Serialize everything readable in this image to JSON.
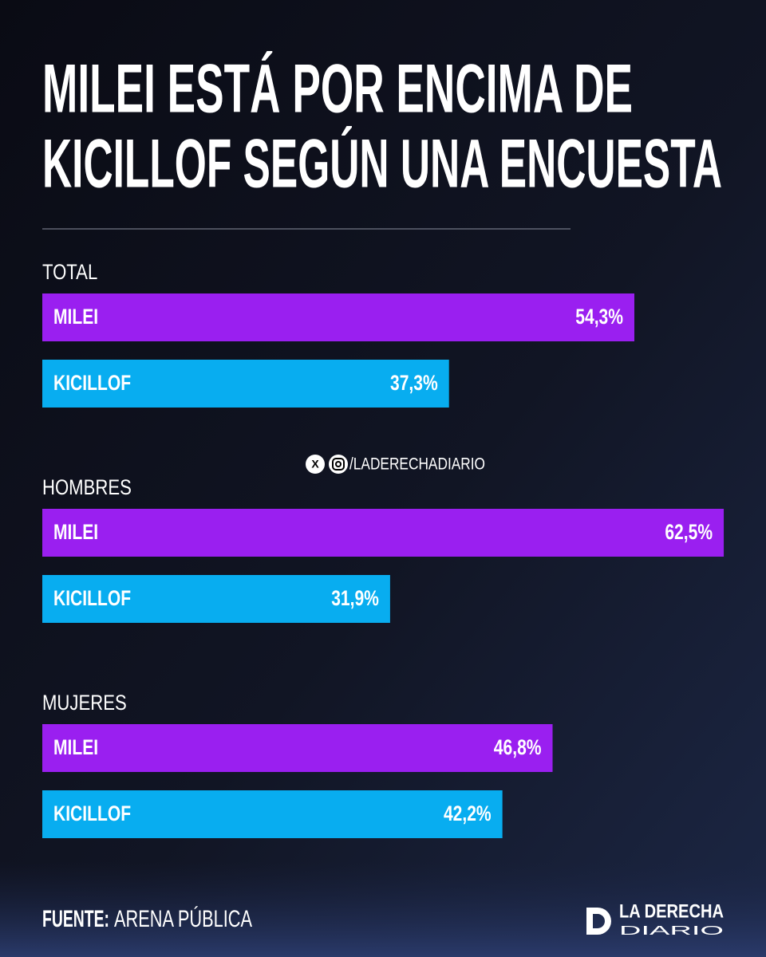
{
  "chart_data": {
    "type": "bar",
    "title": [
      "MILEI ESTÁ POR ENCIMA DE",
      "KICILLOF SEGÚN UNA ENCUESTA"
    ],
    "categories": [
      "TOTAL",
      "HOMBRES",
      "MUJERES"
    ],
    "series": [
      {
        "name": "MILEI",
        "color": "#9a1ff0",
        "values": [
          54.3,
          62.5,
          46.8
        ],
        "value_labels": [
          "54,3%",
          "62,5%",
          "46,8%"
        ]
      },
      {
        "name": "KICILLOF",
        "color": "#08adf0",
        "values": [
          37.3,
          31.9,
          42.2
        ],
        "value_labels": [
          "37,3%",
          "31,9%",
          "42,2%"
        ]
      }
    ],
    "handle": "/LADERECHADIARIO",
    "source_label": "FUENTE:",
    "source": "ARENA PÚBLICA",
    "brand": [
      "LA DERECHA",
      "DIARIO"
    ]
  }
}
